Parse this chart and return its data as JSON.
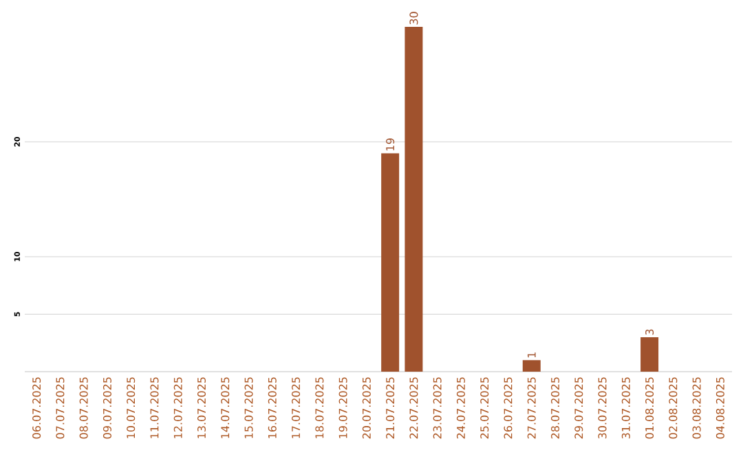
{
  "chart_data": {
    "type": "bar",
    "categories": [
      "06.07.2025",
      "07.07.2025",
      "08.07.2025",
      "09.07.2025",
      "10.07.2025",
      "11.07.2025",
      "12.07.2025",
      "13.07.2025",
      "14.07.2025",
      "15.07.2025",
      "16.07.2025",
      "17.07.2025",
      "18.07.2025",
      "19.07.2025",
      "20.07.2025",
      "21.07.2025",
      "22.07.2025",
      "23.07.2025",
      "24.07.2025",
      "25.07.2025",
      "26.07.2025",
      "27.07.2025",
      "28.07.2025",
      "29.07.2025",
      "30.07.2025",
      "31.07.2025",
      "01.08.2025",
      "02.08.2025",
      "03.08.2025",
      "04.08.2025"
    ],
    "values": [
      0,
      0,
      0,
      0,
      0,
      0,
      0,
      0,
      0,
      0,
      0,
      0,
      0,
      0,
      0,
      19,
      30,
      0,
      0,
      0,
      0,
      1,
      0,
      0,
      0,
      0,
      3,
      0,
      0,
      0
    ],
    "value_labels": [
      null,
      null,
      null,
      null,
      null,
      null,
      null,
      null,
      null,
      null,
      null,
      null,
      null,
      null,
      null,
      "19",
      "30",
      null,
      null,
      null,
      null,
      "1",
      null,
      null,
      null,
      null,
      "3",
      null,
      null,
      null
    ],
    "color": "#a0522d",
    "ylim": [
      0,
      30
    ],
    "yticks": [
      5,
      10,
      20
    ],
    "grid": "y"
  }
}
